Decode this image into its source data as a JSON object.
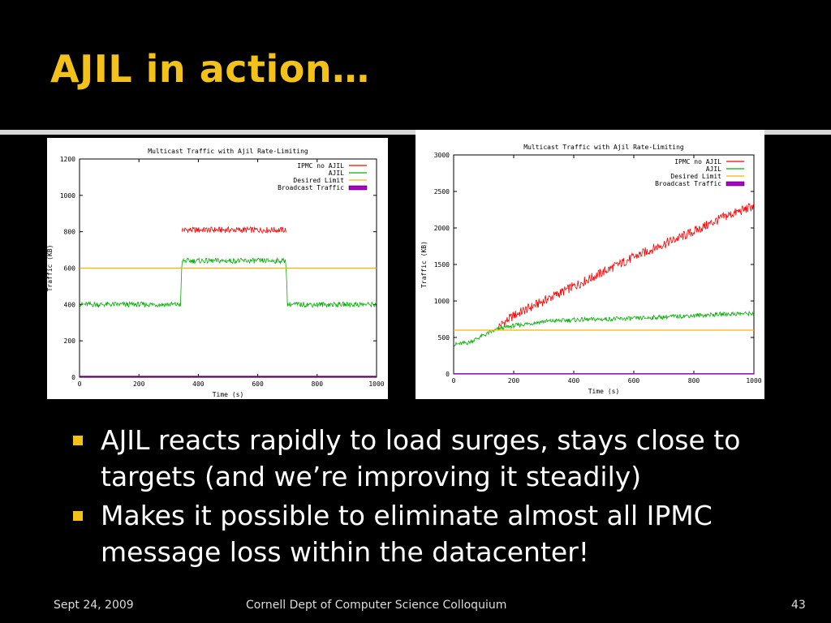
{
  "slide": {
    "title": "AJIL in action…",
    "bullets": [
      "AJIL reacts rapidly to load surges, stays close to targets (and we’re improving it steadily)",
      "Makes it possible to eliminate almost all IPMC message loss within the datacenter!"
    ],
    "footer": {
      "date": "Sept 24, 2009",
      "event": "Cornell Dept of Computer Science Colloquium",
      "page": "43"
    }
  },
  "colors": {
    "background": "#000000",
    "title": "#f2c21a",
    "ipmc": "#ff0000",
    "ajil": "#00b000",
    "desired": "#ffb000",
    "broadcast": "#b000d0"
  },
  "chart_data": [
    {
      "type": "line",
      "title": "Multicast Traffic with Ajil Rate-Limiting",
      "xlabel": "Time (s)",
      "ylabel": "Traffic (KB)",
      "xlim": [
        0,
        1000
      ],
      "ylim": [
        0,
        1200
      ],
      "xticks": [
        0,
        200,
        400,
        600,
        800,
        1000
      ],
      "yticks": [
        0,
        200,
        400,
        600,
        800,
        1000,
        1200
      ],
      "legend_position": "top-right",
      "series": [
        {
          "name": "IPMC no AJIL",
          "color": "#ff0000",
          "x": [
            345,
            400,
            500,
            600,
            695
          ],
          "y": [
            810,
            810,
            810,
            810,
            810
          ]
        },
        {
          "name": "AJIL",
          "color": "#00b000",
          "x": [
            0,
            100,
            200,
            340,
            345,
            400,
            500,
            600,
            695,
            700,
            800,
            900,
            1000
          ],
          "y": [
            400,
            400,
            400,
            400,
            640,
            640,
            640,
            640,
            640,
            400,
            400,
            400,
            400
          ]
        },
        {
          "name": "Desired Limit",
          "color": "#ffb000",
          "x": [
            0,
            1000
          ],
          "y": [
            600,
            600
          ]
        },
        {
          "name": "Broadcast Traffic",
          "color": "#b000d0",
          "x": [
            0,
            1000
          ],
          "y": [
            5,
            5
          ]
        }
      ]
    },
    {
      "type": "line",
      "title": "Multicast Traffic with Ajil Rate-Limiting",
      "xlabel": "Time (s)",
      "ylabel": "Traffic (KB)",
      "xlim": [
        0,
        1000
      ],
      "ylim": [
        0,
        3000
      ],
      "xticks": [
        0,
        200,
        400,
        600,
        800,
        1000
      ],
      "yticks": [
        0,
        500,
        1000,
        1500,
        2000,
        2500,
        3000
      ],
      "legend_position": "top-right",
      "series": [
        {
          "name": "IPMC no AJIL",
          "color": "#ff0000",
          "x": [
            150,
            200,
            300,
            400,
            500,
            600,
            700,
            800,
            900,
            1000
          ],
          "y": [
            650,
            800,
            1000,
            1200,
            1400,
            1600,
            1780,
            1950,
            2150,
            2300
          ]
        },
        {
          "name": "AJIL",
          "color": "#00b000",
          "x": [
            0,
            50,
            100,
            150,
            200,
            300,
            400,
            500,
            600,
            700,
            800,
            900,
            1000
          ],
          "y": [
            400,
            430,
            530,
            620,
            660,
            720,
            740,
            750,
            760,
            780,
            800,
            820,
            830
          ]
        },
        {
          "name": "Desired Limit",
          "color": "#ffb000",
          "x": [
            0,
            1000
          ],
          "y": [
            600,
            600
          ]
        },
        {
          "name": "Broadcast Traffic",
          "color": "#b000d0",
          "x": [
            0,
            1000
          ],
          "y": [
            5,
            5
          ]
        }
      ]
    }
  ]
}
